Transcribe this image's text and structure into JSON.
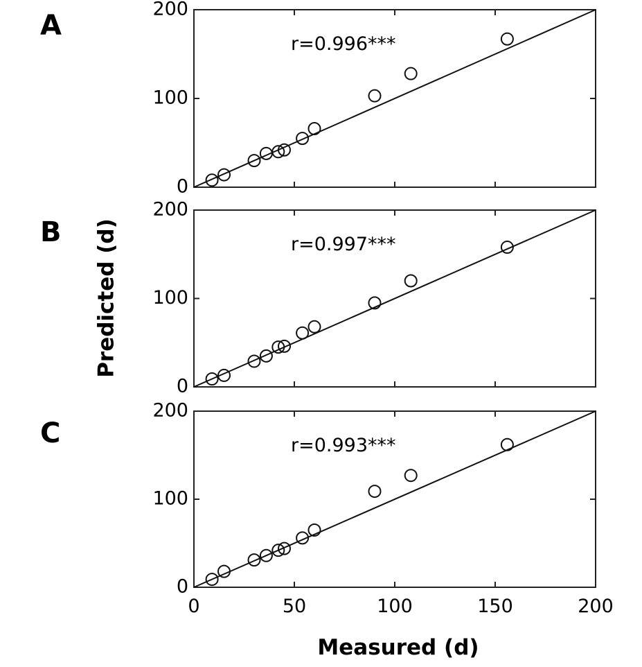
{
  "chart_data": [
    {
      "type": "scatter",
      "panel_label": "A",
      "annotation": "r=0.996***",
      "xlim": [
        0,
        200
      ],
      "ylim": [
        0,
        200
      ],
      "points": [
        {
          "x": 9,
          "y": 8
        },
        {
          "x": 15,
          "y": 14
        },
        {
          "x": 30,
          "y": 30
        },
        {
          "x": 36,
          "y": 38
        },
        {
          "x": 42,
          "y": 40
        },
        {
          "x": 45,
          "y": 42
        },
        {
          "x": 54,
          "y": 55
        },
        {
          "x": 60,
          "y": 66
        },
        {
          "x": 90,
          "y": 103
        },
        {
          "x": 108,
          "y": 128
        },
        {
          "x": 156,
          "y": 167
        }
      ],
      "line": {
        "x": [
          0,
          200
        ],
        "y": [
          0,
          200
        ]
      }
    },
    {
      "type": "scatter",
      "panel_label": "B",
      "annotation": "r=0.997***",
      "xlim": [
        0,
        200
      ],
      "ylim": [
        0,
        200
      ],
      "points": [
        {
          "x": 9,
          "y": 9
        },
        {
          "x": 15,
          "y": 13
        },
        {
          "x": 30,
          "y": 29
        },
        {
          "x": 36,
          "y": 35
        },
        {
          "x": 42,
          "y": 45
        },
        {
          "x": 45,
          "y": 46
        },
        {
          "x": 54,
          "y": 61
        },
        {
          "x": 60,
          "y": 68
        },
        {
          "x": 90,
          "y": 95
        },
        {
          "x": 108,
          "y": 120
        },
        {
          "x": 156,
          "y": 158
        }
      ],
      "line": {
        "x": [
          0,
          200
        ],
        "y": [
          0,
          200
        ]
      }
    },
    {
      "type": "scatter",
      "panel_label": "C",
      "annotation": "r=0.993***",
      "xlim": [
        0,
        200
      ],
      "ylim": [
        0,
        200
      ],
      "points": [
        {
          "x": 9,
          "y": 9
        },
        {
          "x": 15,
          "y": 18
        },
        {
          "x": 30,
          "y": 31
        },
        {
          "x": 36,
          "y": 36
        },
        {
          "x": 42,
          "y": 42
        },
        {
          "x": 45,
          "y": 44
        },
        {
          "x": 54,
          "y": 56
        },
        {
          "x": 60,
          "y": 65
        },
        {
          "x": 90,
          "y": 109
        },
        {
          "x": 108,
          "y": 127
        },
        {
          "x": 156,
          "y": 162
        }
      ],
      "line": {
        "x": [
          0,
          200
        ],
        "y": [
          0,
          200
        ]
      }
    }
  ],
  "axes": {
    "xlabel": "Measured (d)",
    "ylabel": "Predicted (d)",
    "x_ticks": [
      0,
      50,
      100,
      150,
      200
    ],
    "y_ticks": [
      0,
      100,
      200
    ]
  }
}
